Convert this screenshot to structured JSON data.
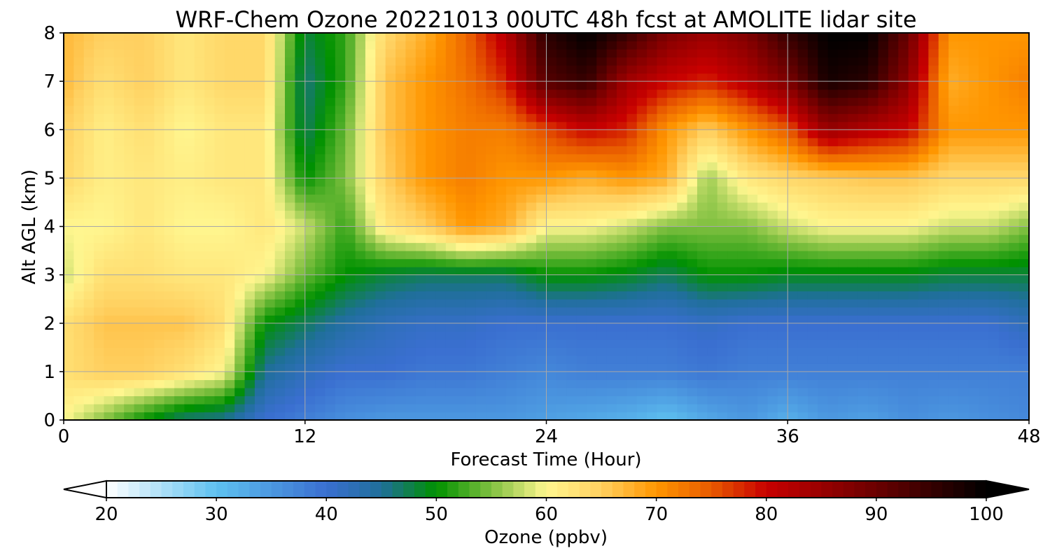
{
  "chart_data": {
    "type": "heatmap",
    "title": "WRF-Chem Ozone  20221013 00UTC 48h fcst at AMOLITE lidar site",
    "xlabel": "Forecast Time (Hour)",
    "ylabel": "Alt AGL (km)",
    "xlim": [
      0,
      48
    ],
    "ylim": [
      0,
      8
    ],
    "x_ticks": [
      0,
      12,
      24,
      36,
      48
    ],
    "y_ticks": [
      0,
      1,
      2,
      3,
      4,
      5,
      6,
      7,
      8
    ],
    "grid": true,
    "x": [
      0,
      2,
      4,
      6,
      8,
      10,
      12,
      14,
      16,
      18,
      20,
      22,
      24,
      26,
      28,
      30,
      32,
      34,
      36,
      38,
      40,
      42,
      44,
      46,
      48
    ],
    "y": [
      0,
      1,
      2,
      3,
      4,
      5,
      6,
      7,
      8
    ],
    "z": [
      [
        60,
        55,
        50,
        46,
        45,
        40,
        38,
        36,
        35,
        35,
        35,
        35,
        34,
        33,
        32,
        30,
        33,
        35,
        32,
        35,
        34,
        36,
        35,
        36,
        37
      ],
      [
        63,
        65,
        65,
        63,
        60,
        45,
        42,
        40,
        40,
        39,
        39,
        38,
        37,
        38,
        38,
        38,
        39,
        38,
        38,
        38,
        38,
        38,
        38,
        38,
        38
      ],
      [
        63,
        66,
        66,
        66,
        63,
        50,
        47,
        44,
        42,
        41,
        41,
        40,
        40,
        40,
        40,
        40,
        41,
        40,
        40,
        40,
        40,
        40,
        40,
        40,
        42
      ],
      [
        58,
        63,
        63,
        62,
        62,
        60,
        54,
        50,
        48,
        47,
        47,
        47,
        50,
        50,
        49,
        47,
        50,
        50,
        49,
        49,
        49,
        49,
        48,
        48,
        48
      ],
      [
        60,
        60,
        62,
        60,
        60,
        62,
        58,
        52,
        62,
        65,
        70,
        68,
        60,
        60,
        58,
        55,
        55,
        55,
        58,
        60,
        60,
        60,
        58,
        58,
        55
      ],
      [
        64,
        61,
        62,
        61,
        62,
        62,
        50,
        55,
        65,
        70,
        72,
        70,
        70,
        68,
        70,
        68,
        56,
        62,
        64,
        65,
        66,
        66,
        64,
        64,
        64
      ],
      [
        65,
        61,
        63,
        60,
        62,
        62,
        47,
        54,
        66,
        70,
        72,
        72,
        76,
        80,
        78,
        70,
        65,
        70,
        75,
        85,
        82,
        80,
        70,
        70,
        70
      ],
      [
        67,
        63,
        65,
        62,
        64,
        64,
        46,
        52,
        66,
        70,
        73,
        78,
        92,
        95,
        84,
        80,
        78,
        82,
        88,
        98,
        96,
        86,
        68,
        70,
        72
      ],
      [
        67,
        65,
        65,
        62,
        64,
        64,
        48,
        52,
        64,
        68,
        74,
        82,
        96,
        100,
        95,
        88,
        85,
        88,
        95,
        100,
        100,
        90,
        70,
        70,
        70
      ]
    ],
    "colorbar": {
      "label": "Ozone  (ppbv)",
      "min": 20,
      "max": 100,
      "ticks": [
        20,
        30,
        40,
        50,
        60,
        70,
        80,
        90,
        100
      ],
      "extend": "both",
      "colors": [
        {
          "value": 20,
          "color": "#ffffff"
        },
        {
          "value": 30,
          "color": "#5ec1f0"
        },
        {
          "value": 40,
          "color": "#3a6fd0"
        },
        {
          "value": 45,
          "color": "#1f6f9a"
        },
        {
          "value": 50,
          "color": "#009100"
        },
        {
          "value": 55,
          "color": "#80c040"
        },
        {
          "value": 60,
          "color": "#fff68f"
        },
        {
          "value": 65,
          "color": "#ffd060"
        },
        {
          "value": 70,
          "color": "#ff9600"
        },
        {
          "value": 75,
          "color": "#e85a00"
        },
        {
          "value": 80,
          "color": "#c80000"
        },
        {
          "value": 90,
          "color": "#6a0000"
        },
        {
          "value": 100,
          "color": "#000000"
        }
      ]
    }
  }
}
